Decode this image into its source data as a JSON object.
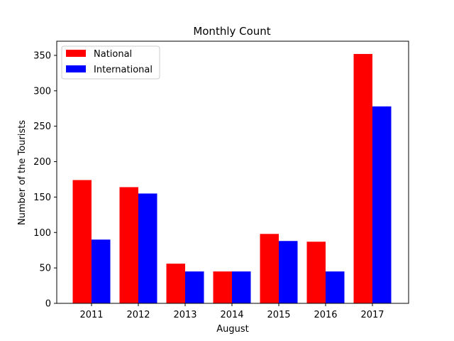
{
  "chart_data": {
    "type": "bar",
    "title": "Monthly Count",
    "xlabel": "August",
    "ylabel": "Number of the Tourists",
    "categories": [
      "2011",
      "2012",
      "2013",
      "2014",
      "2015",
      "2016",
      "2017"
    ],
    "series": [
      {
        "name": "National",
        "color": "#ff0000",
        "values": [
          174,
          164,
          56,
          45,
          98,
          87,
          352
        ]
      },
      {
        "name": "International",
        "color": "#0000ff",
        "values": [
          90,
          155,
          45,
          45,
          88,
          45,
          278
        ]
      }
    ],
    "ylim": [
      0,
      370
    ],
    "yticks": [
      0,
      50,
      100,
      150,
      200,
      250,
      300,
      350
    ],
    "grid": false,
    "legend_position": "top-left"
  }
}
